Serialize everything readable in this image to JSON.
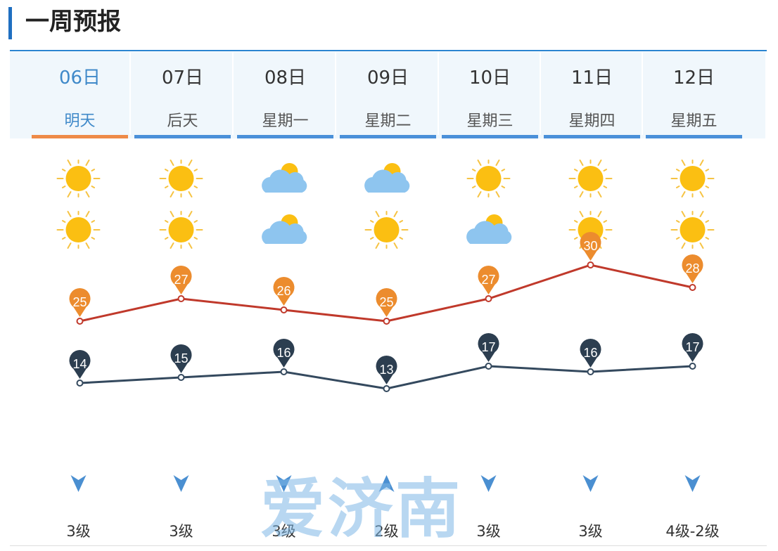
{
  "section_title": "一周预报",
  "days": [
    {
      "date": "06日",
      "weekday": "明天",
      "icon_day": "sunny",
      "icon_night": "sunny",
      "wind": "3级",
      "wind_dir": "down"
    },
    {
      "date": "07日",
      "weekday": "后天",
      "icon_day": "sunny",
      "icon_night": "sunny",
      "wind": "3级",
      "wind_dir": "down"
    },
    {
      "date": "08日",
      "weekday": "星期一",
      "icon_day": "partly-cloudy",
      "icon_night": "partly-cloudy",
      "wind": "3级",
      "wind_dir": "down"
    },
    {
      "date": "09日",
      "weekday": "星期二",
      "icon_day": "partly-cloudy",
      "icon_night": "sunny",
      "wind": "2级",
      "wind_dir": "up"
    },
    {
      "date": "10日",
      "weekday": "星期三",
      "icon_day": "sunny",
      "icon_night": "partly-cloudy",
      "wind": "3级",
      "wind_dir": "down"
    },
    {
      "date": "11日",
      "weekday": "星期四",
      "icon_day": "sunny",
      "icon_night": "sunny",
      "wind": "3级",
      "wind_dir": "down"
    },
    {
      "date": "12日",
      "weekday": "星期五",
      "icon_day": "sunny",
      "icon_night": "sunny",
      "wind": "4级-2级",
      "wind_dir": "down"
    }
  ],
  "watermark": "爱济南",
  "colors": {
    "accent": "#ee8a47",
    "high_line": "#c0392b",
    "low_line": "#34495e",
    "selected_text": "#3f89c9",
    "underline": "#4a90d9"
  },
  "chart_data": {
    "type": "line",
    "categories": [
      "06日",
      "07日",
      "08日",
      "09日",
      "10日",
      "11日",
      "12日"
    ],
    "series": [
      {
        "values": [
          25,
          27,
          26,
          25,
          27,
          30,
          28
        ]
      },
      {
        "values": [
          14,
          15,
          16,
          13,
          17,
          16,
          17
        ]
      }
    ]
  }
}
